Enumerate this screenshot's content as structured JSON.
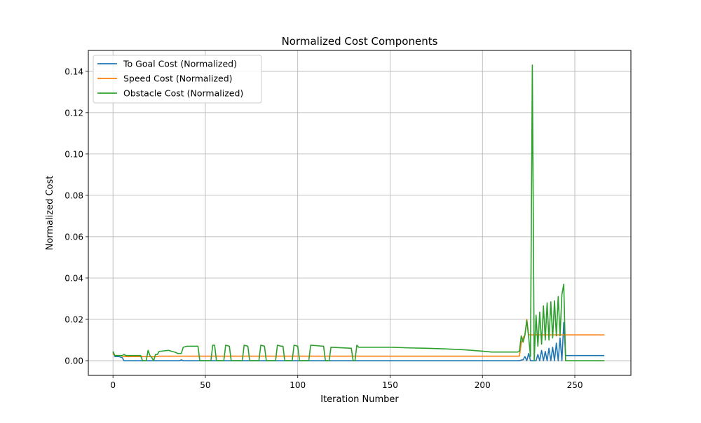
{
  "chart_data": {
    "type": "line",
    "title": "Normalized Cost Components",
    "xlabel": "Iteration Number",
    "ylabel": "Normalized Cost",
    "xlim": [
      -13.35,
      280.35
    ],
    "ylim": [
      -0.0071,
      0.1501
    ],
    "xticks": [
      0,
      50,
      100,
      150,
      200,
      250
    ],
    "yticks": [
      0.0,
      0.02,
      0.04,
      0.06,
      0.08,
      0.1,
      0.12,
      0.14
    ],
    "xtick_labels": [
      "0",
      "50",
      "100",
      "150",
      "200",
      "250"
    ],
    "ytick_labels": [
      "0.00",
      "0.02",
      "0.04",
      "0.06",
      "0.08",
      "0.10",
      "0.12",
      "0.14"
    ],
    "grid": true,
    "legend_position": "top-left",
    "series": [
      {
        "name": "To Goal Cost (Normalized)",
        "color": "#1f77b4",
        "points": [
          [
            0,
            0.004
          ],
          [
            1,
            0.002
          ],
          [
            3,
            0.002
          ],
          [
            5,
            0.0015
          ],
          [
            6,
            0.0
          ],
          [
            36,
            0.0
          ],
          [
            37,
            0.0004
          ],
          [
            38,
            0.0
          ],
          [
            220,
            0.0
          ],
          [
            222,
            0.0005
          ],
          [
            223,
            0.002
          ],
          [
            224,
            0.0
          ],
          [
            225,
            0.0035
          ],
          [
            226,
            0.0
          ],
          [
            227,
            0.0
          ],
          [
            228,
            0.0
          ],
          [
            229,
            0.0
          ],
          [
            230,
            0.003
          ],
          [
            231,
            0.0
          ],
          [
            232,
            0.005
          ],
          [
            233,
            0.0
          ],
          [
            234,
            0.0045
          ],
          [
            235,
            0.0
          ],
          [
            236,
            0.006
          ],
          [
            237,
            0.0
          ],
          [
            238,
            0.0065
          ],
          [
            239,
            0.0
          ],
          [
            240,
            0.0085
          ],
          [
            241,
            0.0
          ],
          [
            242,
            0.011
          ],
          [
            243,
            0.0
          ],
          [
            244,
            0.0185
          ],
          [
            245,
            0.0025
          ],
          [
            266,
            0.0025
          ]
        ]
      },
      {
        "name": "Speed Cost (Normalized)",
        "color": "#ff7f0e",
        "points": [
          [
            0,
            0.0035
          ],
          [
            1,
            0.0025
          ],
          [
            4,
            0.0025
          ],
          [
            6,
            0.002
          ],
          [
            24,
            0.002
          ],
          [
            25,
            0.0022
          ],
          [
            219,
            0.0022
          ],
          [
            220,
            0.0022
          ],
          [
            221,
            0.0085
          ],
          [
            222,
            0.011
          ],
          [
            223,
            0.0125
          ],
          [
            224,
            0.02
          ],
          [
            225,
            0.0125
          ],
          [
            226,
            0.0125
          ],
          [
            244,
            0.0125
          ],
          [
            266,
            0.0125
          ]
        ]
      },
      {
        "name": "Obstacle Cost (Normalized)",
        "color": "#2ca02c",
        "points": [
          [
            0,
            0.0045
          ],
          [
            1,
            0.0025
          ],
          [
            5,
            0.0025
          ],
          [
            6,
            0.003
          ],
          [
            7,
            0.0025
          ],
          [
            15,
            0.0025
          ],
          [
            16,
            0.0
          ],
          [
            18,
            0.0
          ],
          [
            19,
            0.005
          ],
          [
            20,
            0.0025
          ],
          [
            21,
            0.0015
          ],
          [
            22,
            0.0
          ],
          [
            23,
            0.003
          ],
          [
            24,
            0.003
          ],
          [
            25,
            0.0045
          ],
          [
            28,
            0.0048
          ],
          [
            30,
            0.005
          ],
          [
            32,
            0.0045
          ],
          [
            34,
            0.004
          ],
          [
            35,
            0.0035
          ],
          [
            37,
            0.0035
          ],
          [
            38,
            0.0065
          ],
          [
            40,
            0.007
          ],
          [
            46,
            0.007
          ],
          [
            47,
            0.0
          ],
          [
            53,
            0.0
          ],
          [
            54,
            0.0075
          ],
          [
            55,
            0.0075
          ],
          [
            56,
            0.0
          ],
          [
            60,
            0.0
          ],
          [
            61,
            0.0075
          ],
          [
            63,
            0.007
          ],
          [
            64,
            0.0
          ],
          [
            70,
            0.0
          ],
          [
            71,
            0.0075
          ],
          [
            73,
            0.007
          ],
          [
            74,
            0.0
          ],
          [
            79,
            0.0
          ],
          [
            80,
            0.0075
          ],
          [
            82,
            0.007
          ],
          [
            83,
            0.0
          ],
          [
            88,
            0.0
          ],
          [
            89,
            0.0075
          ],
          [
            91,
            0.007
          ],
          [
            92,
            0.007
          ],
          [
            93,
            0.0
          ],
          [
            97,
            0.0
          ],
          [
            98,
            0.0075
          ],
          [
            100,
            0.007
          ],
          [
            101,
            0.0
          ],
          [
            106,
            0.0
          ],
          [
            107,
            0.0075
          ],
          [
            114,
            0.007
          ],
          [
            115,
            0.0
          ],
          [
            117,
            0.0
          ],
          [
            118,
            0.0065
          ],
          [
            129,
            0.006
          ],
          [
            130,
            0.0
          ],
          [
            131,
            0.0
          ],
          [
            132,
            0.0075
          ],
          [
            133,
            0.0065
          ],
          [
            150,
            0.0065
          ],
          [
            160,
            0.0062
          ],
          [
            170,
            0.006
          ],
          [
            180,
            0.0057
          ],
          [
            190,
            0.0053
          ],
          [
            200,
            0.0046
          ],
          [
            205,
            0.0042
          ],
          [
            210,
            0.0042
          ],
          [
            215,
            0.0042
          ],
          [
            219,
            0.0042
          ],
          [
            220,
            0.0045
          ],
          [
            221,
            0.012
          ],
          [
            222,
            0.009
          ],
          [
            223,
            0.0125
          ],
          [
            224,
            0.0195
          ],
          [
            225,
            0.0115
          ],
          [
            226,
            0.002
          ],
          [
            227,
            0.143
          ],
          [
            228,
            0.0
          ],
          [
            229,
            0.022
          ],
          [
            230,
            0.007
          ],
          [
            231,
            0.0235
          ],
          [
            232,
            0.008
          ],
          [
            233,
            0.0265
          ],
          [
            234,
            0.01
          ],
          [
            235,
            0.028
          ],
          [
            236,
            0.01
          ],
          [
            237,
            0.0285
          ],
          [
            238,
            0.011
          ],
          [
            239,
            0.029
          ],
          [
            240,
            0.012
          ],
          [
            241,
            0.031
          ],
          [
            242,
            0.012
          ],
          [
            243,
            0.032
          ],
          [
            244,
            0.037
          ],
          [
            245,
            0.0
          ],
          [
            266,
            0.0
          ]
        ]
      }
    ]
  }
}
